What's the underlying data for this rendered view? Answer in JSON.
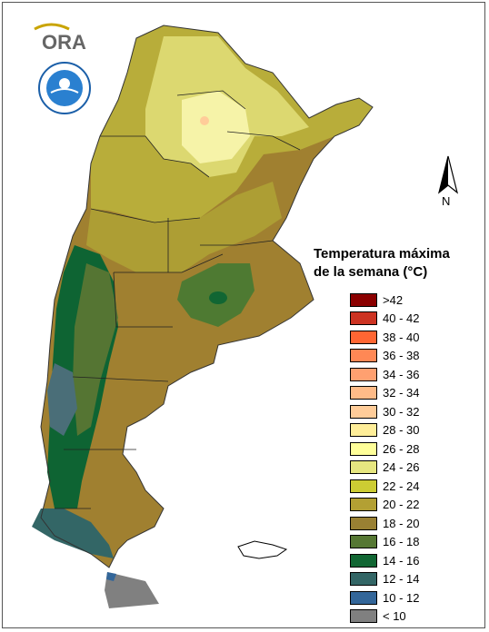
{
  "legend": {
    "title_line1": "Temperatura máxima",
    "title_line2": "de la semana (°C)",
    "items": [
      {
        "label": ">42",
        "color": "#8b0000"
      },
      {
        "label": "40 - 42",
        "color": "#cc3322"
      },
      {
        "label": "38 - 40",
        "color": "#ff6633"
      },
      {
        "label": "36 - 38",
        "color": "#ff8855"
      },
      {
        "label": "34 - 36",
        "color": "#ffa070"
      },
      {
        "label": "32 - 34",
        "color": "#ffbb88"
      },
      {
        "label": "30 - 32",
        "color": "#ffcc99"
      },
      {
        "label": "28 - 30",
        "color": "#ffee99"
      },
      {
        "label": "26 - 28",
        "color": "#ffff99"
      },
      {
        "label": "24 - 26",
        "color": "#e6e680"
      },
      {
        "label": "22 - 24",
        "color": "#cccc33"
      },
      {
        "label": "20 - 22",
        "color": "#b3a033"
      },
      {
        "label": "18 - 20",
        "color": "#998033"
      },
      {
        "label": "16 - 18",
        "color": "#557733"
      },
      {
        "label": "14 - 16",
        "color": "#116633"
      },
      {
        "label": "12 - 14",
        "color": "#336666"
      },
      {
        "label": "10 - 12",
        "color": "#336699"
      },
      {
        "label": "< 10",
        "color": "#808080"
      }
    ]
  },
  "north_arrow": {
    "label": "N"
  },
  "logo": {
    "text": "ORA"
  }
}
